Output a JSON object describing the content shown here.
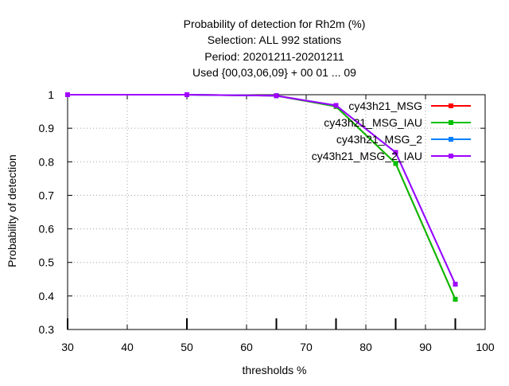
{
  "chart_data": {
    "type": "line",
    "title_lines": [
      "Probability of detection  for Rh2m (%)",
      "Selection: ALL    992 stations",
      "Period: 20201211-20201211",
      "Used {00,03,06,09} + 00 01 ... 09"
    ],
    "xlabel": "thresholds %",
    "ylabel": "Probability of detection",
    "xlim": [
      30,
      100
    ],
    "ylim": [
      0.3,
      1.0
    ],
    "x_ticks": [
      30,
      40,
      50,
      60,
      70,
      80,
      90,
      100
    ],
    "y_ticks": [
      0.3,
      0.4,
      0.5,
      0.6,
      0.7,
      0.8,
      0.9,
      1.0
    ],
    "x_tick_labels": [
      "30",
      "40",
      "50",
      "60",
      "70",
      "80",
      "90",
      "100"
    ],
    "y_tick_labels": [
      "0.3",
      "0.4",
      "0.5",
      "0.6",
      "0.7",
      "0.8",
      "0.9",
      "1"
    ],
    "grid": true,
    "legend_position": "top-right",
    "x": [
      30,
      50,
      65,
      75,
      85,
      95
    ],
    "series": [
      {
        "name": "cy43h21_MSG",
        "color": "#ff0000",
        "values": [
          1.0,
          1.0,
          0.997,
          0.965,
          0.795,
          0.39
        ]
      },
      {
        "name": "cy43h21_MSG_IAU",
        "color": "#00c000",
        "values": [
          1.0,
          1.0,
          0.997,
          0.965,
          0.795,
          0.39
        ]
      },
      {
        "name": "cy43h21_MSG_2",
        "color": "#0080ff",
        "values": [
          1.0,
          1.0,
          0.997,
          0.968,
          0.828,
          0.435
        ]
      },
      {
        "name": "cy43h21_MSG_2_IAU",
        "color": "#a000ff",
        "values": [
          1.0,
          1.0,
          0.997,
          0.968,
          0.828,
          0.435
        ]
      }
    ]
  }
}
